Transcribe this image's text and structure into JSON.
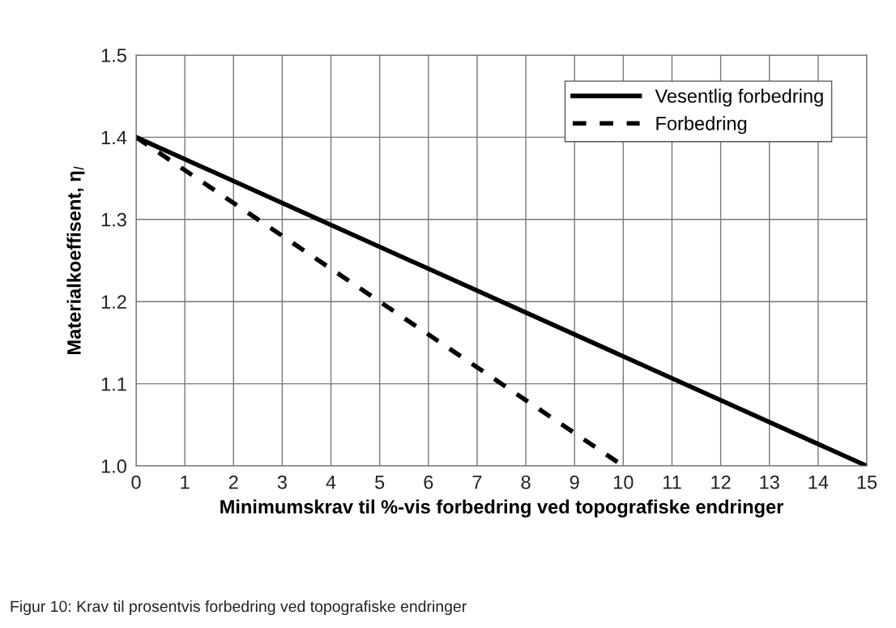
{
  "chart_data": {
    "type": "line",
    "xlabel": "Minimumskrav til %-vis forbedring ved topografiske endringer",
    "ylabel": "Materialkoeffisent, η$_{l}$",
    "xlim": [
      0,
      15
    ],
    "xticks": [
      0,
      1,
      2,
      3,
      4,
      5,
      6,
      7,
      8,
      9,
      10,
      11,
      12,
      13,
      14,
      15
    ],
    "ylim": [
      1.0,
      1.5
    ],
    "yticks": [
      {
        "value": 1.0,
        "label": "1.0"
      },
      1.1,
      1.2,
      1.3,
      1.4,
      1.5
    ],
    "grid": true,
    "legend": "top right",
    "series": [
      {
        "name": "Vesentlig forbedring",
        "color": "#000000",
        "line_style": "solid",
        "x": [
          0,
          15
        ],
        "values": [
          1.4,
          1.0
        ]
      },
      {
        "name": "Forbedring",
        "color": "#000000",
        "line_style": "dashed",
        "x": [
          0,
          10
        ],
        "values": [
          1.4,
          1.0
        ]
      }
    ],
    "annotations": [
      "Figur 10: Krav til prosentvis forbedring ved topografiske endringer"
    ]
  }
}
